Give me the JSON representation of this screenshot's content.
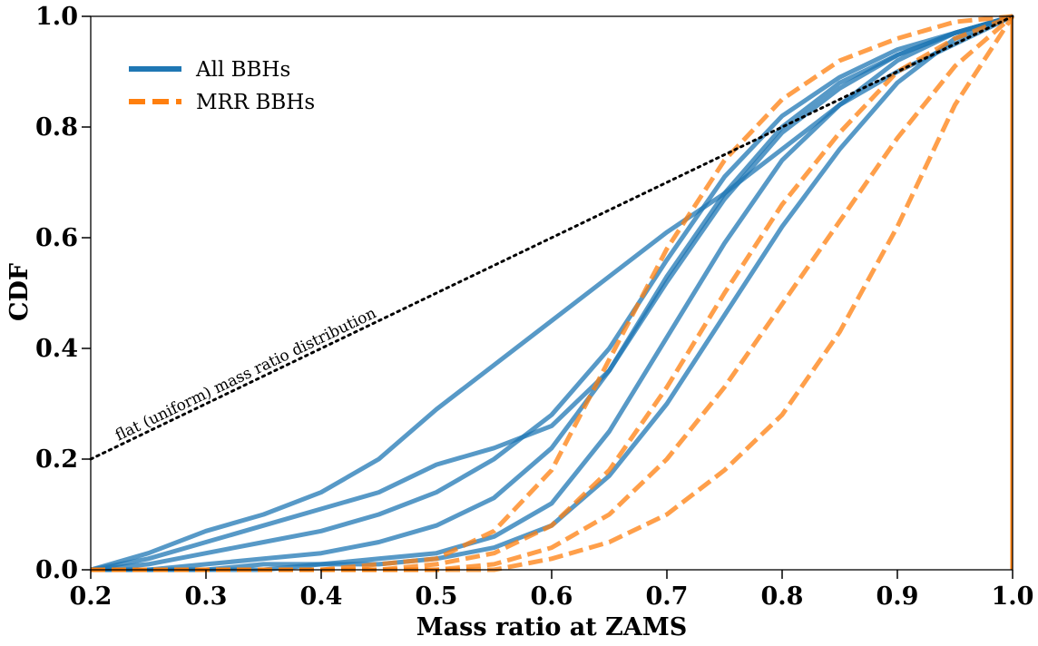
{
  "chart_data": {
    "type": "line",
    "title": "",
    "xlabel": "Mass ratio at ZAMS",
    "ylabel": "CDF",
    "xlim": [
      0.2,
      1.0
    ],
    "ylim": [
      0.0,
      1.0
    ],
    "x_ticks": [
      "0.2",
      "0.3",
      "0.4",
      "0.5",
      "0.6",
      "0.7",
      "0.8",
      "0.9",
      "1.0"
    ],
    "y_ticks": [
      "0.0",
      "0.2",
      "0.4",
      "0.6",
      "0.8",
      "1.0"
    ],
    "grid": false,
    "legend_position": "top-left",
    "legend": [
      {
        "label": "All BBHs",
        "style": "solid",
        "color": "#1f77b4"
      },
      {
        "label": "MRR BBHs",
        "style": "dashed",
        "color": "#ff7f0e"
      }
    ],
    "annotation": "flat (uniform) mass ratio distribution",
    "reference_line": {
      "style": "dotted",
      "color": "#000000",
      "x": [
        0.2,
        1.0
      ],
      "y": [
        0.2,
        1.0
      ]
    },
    "series": [
      {
        "group": "All BBHs",
        "style": "solid",
        "color": "#1f77b4",
        "curves": [
          {
            "x": [
              0.2,
              0.25,
              0.3,
              0.35,
              0.4,
              0.45,
              0.5,
              0.55,
              0.6,
              0.65,
              0.7,
              0.75,
              0.8,
              0.85,
              0.9,
              0.95,
              1.0
            ],
            "y": [
              0.0,
              0.03,
              0.07,
              0.1,
              0.14,
              0.2,
              0.29,
              0.37,
              0.45,
              0.53,
              0.61,
              0.68,
              0.76,
              0.84,
              0.9,
              0.95,
              1.0
            ]
          },
          {
            "x": [
              0.2,
              0.25,
              0.3,
              0.35,
              0.4,
              0.45,
              0.5,
              0.55,
              0.6,
              0.65,
              0.7,
              0.75,
              0.8,
              0.85,
              0.9,
              0.95,
              1.0
            ],
            "y": [
              0.0,
              0.02,
              0.05,
              0.08,
              0.11,
              0.14,
              0.19,
              0.22,
              0.26,
              0.36,
              0.53,
              0.68,
              0.8,
              0.88,
              0.93,
              0.97,
              1.0
            ]
          },
          {
            "x": [
              0.2,
              0.25,
              0.3,
              0.35,
              0.4,
              0.45,
              0.5,
              0.55,
              0.6,
              0.65,
              0.7,
              0.75,
              0.8,
              0.85,
              0.9,
              0.95,
              1.0
            ],
            "y": [
              0.0,
              0.01,
              0.03,
              0.05,
              0.07,
              0.1,
              0.14,
              0.2,
              0.28,
              0.4,
              0.56,
              0.71,
              0.82,
              0.89,
              0.94,
              0.97,
              1.0
            ]
          },
          {
            "x": [
              0.2,
              0.25,
              0.3,
              0.35,
              0.4,
              0.45,
              0.5,
              0.55,
              0.6,
              0.65,
              0.7,
              0.75,
              0.8,
              0.85,
              0.9,
              0.95,
              1.0
            ],
            "y": [
              0.0,
              0.0,
              0.01,
              0.02,
              0.03,
              0.05,
              0.08,
              0.13,
              0.22,
              0.36,
              0.52,
              0.67,
              0.79,
              0.87,
              0.93,
              0.97,
              1.0
            ]
          },
          {
            "x": [
              0.2,
              0.25,
              0.3,
              0.35,
              0.4,
              0.45,
              0.5,
              0.55,
              0.6,
              0.65,
              0.7,
              0.75,
              0.8,
              0.85,
              0.9,
              0.95,
              1.0
            ],
            "y": [
              0.0,
              0.0,
              0.0,
              0.01,
              0.01,
              0.02,
              0.03,
              0.06,
              0.12,
              0.25,
              0.42,
              0.59,
              0.74,
              0.84,
              0.92,
              0.97,
              1.0
            ]
          },
          {
            "x": [
              0.2,
              0.25,
              0.3,
              0.35,
              0.4,
              0.45,
              0.5,
              0.55,
              0.6,
              0.65,
              0.7,
              0.75,
              0.8,
              0.85,
              0.9,
              0.95,
              1.0
            ],
            "y": [
              0.0,
              0.0,
              0.0,
              0.0,
              0.01,
              0.01,
              0.02,
              0.04,
              0.08,
              0.17,
              0.3,
              0.46,
              0.62,
              0.76,
              0.88,
              0.96,
              1.0
            ]
          }
        ]
      },
      {
        "group": "MRR BBHs",
        "style": "dashed",
        "color": "#ff7f0e",
        "curves": [
          {
            "x": [
              0.2,
              0.25,
              0.3,
              0.35,
              0.4,
              0.45,
              0.5,
              0.55,
              0.6,
              0.65,
              0.7,
              0.75,
              0.8,
              0.85,
              0.9,
              0.95,
              1.0
            ],
            "y": [
              0.0,
              0.0,
              0.0,
              0.0,
              0.0,
              0.01,
              0.02,
              0.07,
              0.18,
              0.38,
              0.58,
              0.74,
              0.85,
              0.92,
              0.96,
              0.99,
              1.0
            ]
          },
          {
            "x": [
              0.2,
              0.25,
              0.3,
              0.35,
              0.4,
              0.45,
              0.5,
              0.55,
              0.6,
              0.65,
              0.7,
              0.75,
              0.8,
              0.85,
              0.9,
              0.95,
              1.0
            ],
            "y": [
              0.0,
              0.0,
              0.0,
              0.0,
              0.0,
              0.0,
              0.01,
              0.03,
              0.08,
              0.18,
              0.33,
              0.5,
              0.66,
              0.79,
              0.9,
              0.96,
              1.0
            ]
          },
          {
            "x": [
              0.2,
              0.25,
              0.3,
              0.35,
              0.4,
              0.45,
              0.5,
              0.55,
              0.6,
              0.65,
              0.7,
              0.75,
              0.8,
              0.85,
              0.9,
              0.95,
              1.0
            ],
            "y": [
              0.0,
              0.0,
              0.0,
              0.0,
              0.0,
              0.0,
              0.0,
              0.01,
              0.04,
              0.1,
              0.2,
              0.33,
              0.48,
              0.63,
              0.78,
              0.91,
              1.0
            ]
          },
          {
            "x": [
              0.2,
              0.25,
              0.3,
              0.35,
              0.4,
              0.45,
              0.5,
              0.55,
              0.6,
              0.65,
              0.7,
              0.75,
              0.8,
              0.85,
              0.9,
              0.95,
              1.0
            ],
            "y": [
              0.0,
              0.0,
              0.0,
              0.0,
              0.0,
              0.0,
              0.0,
              0.0,
              0.02,
              0.05,
              0.1,
              0.18,
              0.28,
              0.43,
              0.62,
              0.84,
              1.0
            ]
          }
        ]
      }
    ]
  }
}
